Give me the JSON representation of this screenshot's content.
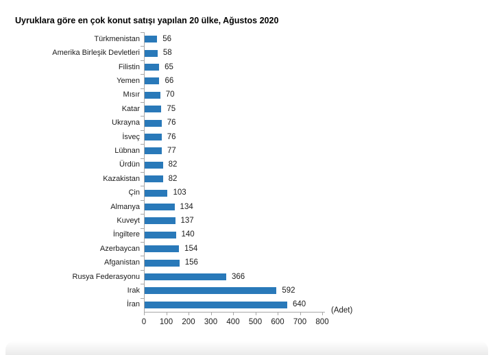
{
  "title": "Uyruklara göre en çok konut satışı yapılan 20 ülke, Ağustos 2020",
  "chart_data": {
    "type": "bar",
    "orientation": "horizontal",
    "title": "Uyruklara göre en çok konut satışı yapılan 20 ülke, Ağustos 2020",
    "categories": [
      "Türkmenistan",
      "Amerika Birleşik Devletleri",
      "Filistin",
      "Yemen",
      "Mısır",
      "Katar",
      "Ukrayna",
      "İsveç",
      "Lübnan",
      "Ürdün",
      "Kazakistan",
      "Çin",
      "Almanya",
      "Kuveyt",
      "İngiltere",
      "Azerbaycan",
      "Afganistan",
      "Rusya Federasyonu",
      "Irak",
      "İran"
    ],
    "values": [
      56,
      58,
      65,
      66,
      70,
      75,
      76,
      76,
      77,
      82,
      82,
      103,
      134,
      137,
      140,
      154,
      156,
      366,
      592,
      640
    ],
    "xlabel": "(Adet)",
    "x_ticks": [
      0,
      100,
      200,
      300,
      400,
      500,
      600,
      700,
      800
    ],
    "xlim": [
      0,
      800
    ],
    "grid": false,
    "data_labels": true,
    "bar_color": "#2979b9",
    "axis_color": "#a6a6a6"
  }
}
